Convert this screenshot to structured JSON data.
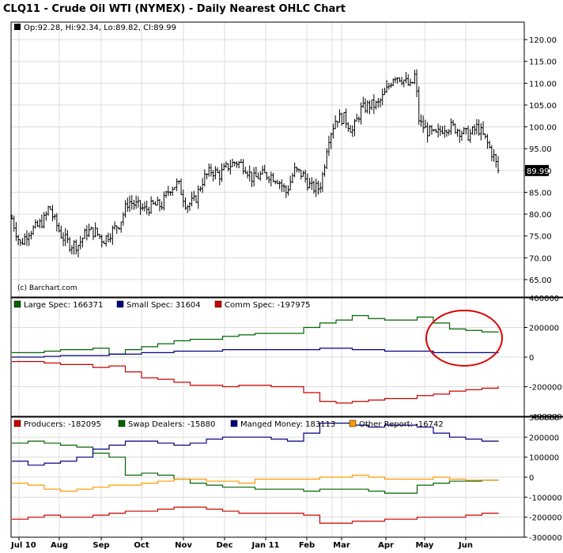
{
  "title": "CLQ11 - Crude Oil WTI (NYMEX) - Daily Nearest OHLC Chart",
  "x_axis": {
    "labels": [
      "Jul 10",
      "Aug",
      "Sep",
      "Oct",
      "Nov",
      "Dec",
      "Jan 11",
      "Feb",
      "Mar",
      "Apr",
      "May",
      "Jun"
    ]
  },
  "chart_data": [
    {
      "type": "ohlc",
      "legend": "Op:92.28, Hi:92.34, Lo:89.82, Cl:89.99",
      "credit": "(c) Barchart.com",
      "last_price_label": "89.99",
      "last_price": 89.99,
      "ylim": [
        61,
        124
      ],
      "yticks": [
        65,
        70,
        75,
        80,
        85,
        90,
        95,
        100,
        105,
        110,
        115,
        120
      ],
      "ytick_labels": [
        "65.00",
        "70.00",
        "75.00",
        "80.00",
        "85.00",
        "90.00",
        "95.00",
        "100.00",
        "105.00",
        "110.00",
        "115.00",
        "120.00"
      ],
      "series_close": [
        [
          0,
          79
        ],
        [
          1,
          73
        ],
        [
          2,
          76
        ],
        [
          3,
          77
        ],
        [
          4,
          79
        ],
        [
          4.5,
          82
        ],
        [
          5,
          79
        ],
        [
          6,
          75
        ],
        [
          7,
          73
        ],
        [
          8,
          73
        ],
        [
          9,
          76
        ],
        [
          10,
          76
        ],
        [
          11,
          74
        ],
        [
          12,
          76
        ],
        [
          13,
          78
        ],
        [
          14,
          83
        ],
        [
          15,
          82
        ],
        [
          16,
          81
        ],
        [
          17,
          82
        ],
        [
          18,
          82
        ],
        [
          19,
          86
        ],
        [
          20,
          87
        ],
        [
          21,
          82
        ],
        [
          22,
          83
        ],
        [
          23,
          88
        ],
        [
          24,
          90
        ],
        [
          25,
          89
        ],
        [
          26,
          91
        ],
        [
          27,
          92
        ],
        [
          28,
          91
        ],
        [
          29,
          88
        ],
        [
          30,
          89
        ],
        [
          31,
          89
        ],
        [
          32,
          88
        ],
        [
          33,
          85
        ],
        [
          34,
          90
        ],
        [
          35,
          89
        ],
        [
          36,
          86
        ],
        [
          37,
          86
        ],
        [
          37.5,
          90
        ],
        [
          38,
          97
        ],
        [
          39,
          102
        ],
        [
          40,
          102
        ],
        [
          41,
          99
        ],
        [
          42,
          104
        ],
        [
          43,
          105
        ],
        [
          44,
          105
        ],
        [
          45,
          108
        ],
        [
          46,
          112
        ],
        [
          47,
          111
        ],
        [
          48,
          109
        ],
        [
          48.5,
          112
        ],
        [
          49,
          101
        ],
        [
          50,
          99
        ],
        [
          51,
          98
        ],
        [
          52,
          100
        ],
        [
          53,
          100
        ],
        [
          54,
          99
        ],
        [
          55,
          98
        ],
        [
          56,
          100
        ],
        [
          57,
          97
        ],
        [
          58,
          93
        ],
        [
          58.5,
          90
        ]
      ]
    },
    {
      "type": "line",
      "ylim": [
        -400000,
        400000
      ],
      "yticks": [
        400000,
        200000,
        0,
        -200000,
        -400000
      ],
      "ytick_labels": [
        "400000",
        "200000",
        "0",
        "-200000",
        "-400000"
      ],
      "series": [
        {
          "name": "Large Spec: 166371",
          "color": "#006400",
          "values": [
            30000,
            30000,
            40000,
            50000,
            50000,
            60000,
            20000,
            50000,
            70000,
            90000,
            110000,
            120000,
            120000,
            140000,
            150000,
            160000,
            160000,
            160000,
            200000,
            230000,
            250000,
            280000,
            260000,
            250000,
            250000,
            270000,
            230000,
            190000,
            180000,
            170000,
            166371
          ]
        },
        {
          "name": "Small Spec: 31604",
          "color": "#000080",
          "values": [
            0,
            0,
            5000,
            10000,
            10000,
            10000,
            20000,
            20000,
            30000,
            30000,
            40000,
            40000,
            40000,
            50000,
            50000,
            50000,
            50000,
            50000,
            50000,
            60000,
            60000,
            50000,
            50000,
            40000,
            40000,
            40000,
            30000,
            30000,
            30000,
            30000,
            31604
          ]
        },
        {
          "name": "Comm Spec: -197975",
          "color": "#cc0000",
          "values": [
            -30000,
            -30000,
            -40000,
            -50000,
            -50000,
            -70000,
            -60000,
            -100000,
            -140000,
            -150000,
            -170000,
            -190000,
            -190000,
            -200000,
            -190000,
            -190000,
            -200000,
            -200000,
            -240000,
            -300000,
            -310000,
            -300000,
            -290000,
            -280000,
            -280000,
            -260000,
            -250000,
            -230000,
            -220000,
            -210000,
            -197975
          ]
        }
      ]
    },
    {
      "type": "line",
      "ylim": [
        -300000,
        300000
      ],
      "yticks": [
        300000,
        200000,
        100000,
        0,
        -100000,
        -200000,
        -300000
      ],
      "ytick_labels": [
        "300000",
        "200000",
        "100000",
        "0",
        "-100000",
        "-200000",
        "-300000"
      ],
      "series": [
        {
          "name": "Producers: -182095",
          "color": "#cc0000",
          "values": [
            -210000,
            -200000,
            -190000,
            -200000,
            -200000,
            -190000,
            -180000,
            -170000,
            -170000,
            -160000,
            -150000,
            -150000,
            -160000,
            -170000,
            -180000,
            -180000,
            -180000,
            -180000,
            -190000,
            -230000,
            -230000,
            -220000,
            -220000,
            -210000,
            -210000,
            -200000,
            -200000,
            -200000,
            -190000,
            -180000,
            -182095
          ]
        },
        {
          "name": "Swap Dealers: -15880",
          "color": "#006400",
          "values": [
            170000,
            180000,
            170000,
            160000,
            150000,
            120000,
            100000,
            10000,
            20000,
            10000,
            -10000,
            -30000,
            -40000,
            -50000,
            -50000,
            -60000,
            -60000,
            -60000,
            -70000,
            -60000,
            -60000,
            -60000,
            -70000,
            -80000,
            -80000,
            -40000,
            -30000,
            -20000,
            -20000,
            -15000,
            -15880
          ]
        },
        {
          "name": "Manged Money: 183113",
          "color": "#000080",
          "values": [
            80000,
            60000,
            70000,
            80000,
            100000,
            140000,
            160000,
            180000,
            180000,
            170000,
            160000,
            170000,
            190000,
            200000,
            200000,
            200000,
            190000,
            180000,
            220000,
            270000,
            270000,
            260000,
            250000,
            260000,
            260000,
            250000,
            220000,
            200000,
            190000,
            180000,
            183113
          ]
        },
        {
          "name": "Other Report: -16742",
          "color": "#ff9900",
          "values": [
            -30000,
            -40000,
            -60000,
            -70000,
            -60000,
            -50000,
            -40000,
            -40000,
            -30000,
            -20000,
            -10000,
            -10000,
            -20000,
            -20000,
            -30000,
            -10000,
            -10000,
            -10000,
            -10000,
            0,
            0,
            10000,
            0,
            -10000,
            -10000,
            -10000,
            0,
            -10000,
            -15000,
            -16000,
            -16742
          ]
        }
      ]
    }
  ]
}
